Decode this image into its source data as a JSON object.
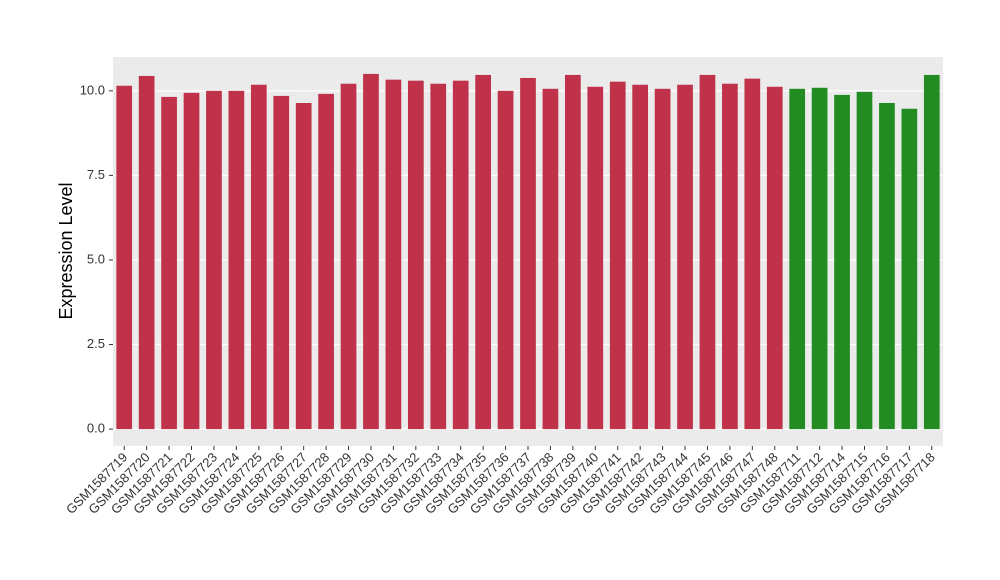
{
  "chart_data": {
    "type": "bar",
    "y_label": "Expression Level",
    "categories": [
      "GSM1587719",
      "GSM1587720",
      "GSM1587721",
      "GSM1587722",
      "GSM1587723",
      "GSM1587724",
      "GSM1587725",
      "GSM1587726",
      "GSM1587727",
      "GSM1587728",
      "GSM1587729",
      "GSM1587730",
      "GSM1587731",
      "GSM1587732",
      "GSM1587733",
      "GSM1587734",
      "GSM1587735",
      "GSM1587736",
      "GSM1587737",
      "GSM1587738",
      "GSM1587739",
      "GSM1587740",
      "GSM1587741",
      "GSM1587742",
      "GSM1587743",
      "GSM1587744",
      "GSM1587745",
      "GSM1587746",
      "GSM1587747",
      "GSM1587748",
      "GSM1587711",
      "GSM1587712",
      "GSM1587714",
      "GSM1587715",
      "GSM1587716",
      "GSM1587717",
      "GSM1587718"
    ],
    "values": [
      10.15,
      10.44,
      9.82,
      9.94,
      10.0,
      10.0,
      10.18,
      9.85,
      9.64,
      9.91,
      10.21,
      10.5,
      10.33,
      10.3,
      10.21,
      10.3,
      10.47,
      10.0,
      10.38,
      10.06,
      10.47,
      10.12,
      10.27,
      10.18,
      10.06,
      10.18,
      10.47,
      10.21,
      10.36,
      10.12,
      10.06,
      10.09,
      9.88,
      9.97,
      9.64,
      9.47,
      10.47
    ],
    "colors": [
      "#c0314a",
      "#c0314a",
      "#c0314a",
      "#c0314a",
      "#c0314a",
      "#c0314a",
      "#c0314a",
      "#c0314a",
      "#c0314a",
      "#c0314a",
      "#c0314a",
      "#c0314a",
      "#c0314a",
      "#c0314a",
      "#c0314a",
      "#c0314a",
      "#c0314a",
      "#c0314a",
      "#c0314a",
      "#c0314a",
      "#c0314a",
      "#c0314a",
      "#c0314a",
      "#c0314a",
      "#c0314a",
      "#c0314a",
      "#c0314a",
      "#c0314a",
      "#c0314a",
      "#c0314a",
      "#228b22",
      "#228b22",
      "#228b22",
      "#228b22",
      "#228b22",
      "#228b22",
      "#228b22"
    ],
    "ylim": [
      -0.5,
      11.0
    ],
    "yticks": [
      {
        "value": 0,
        "label": "0.0"
      },
      2.5,
      {
        "value": 5,
        "label": "5.0"
      },
      7.5,
      {
        "value": 10,
        "label": "10.0"
      }
    ],
    "grid": true
  }
}
